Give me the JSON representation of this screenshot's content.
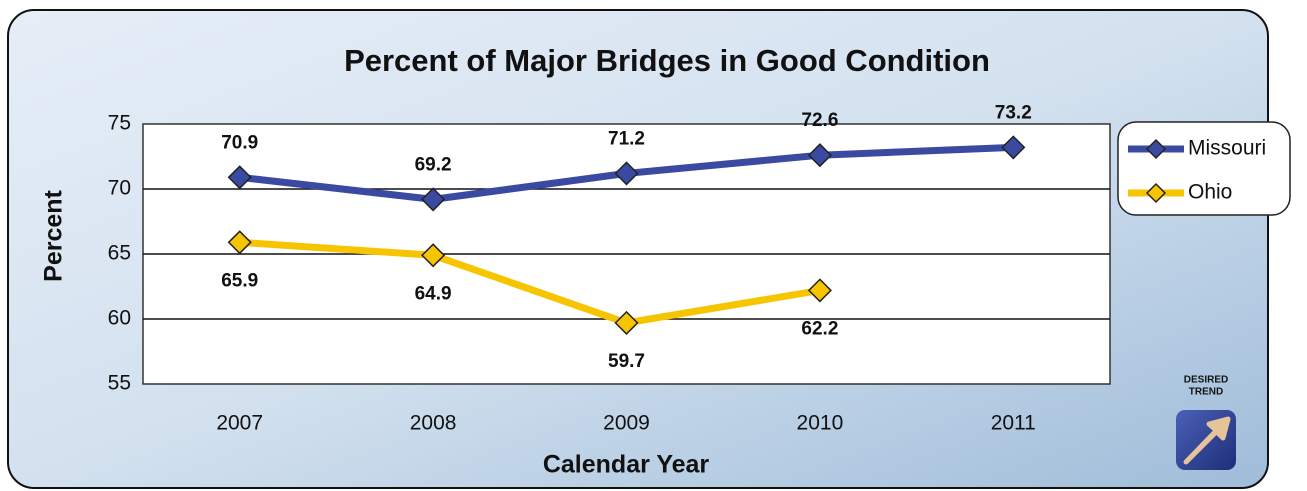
{
  "chart_data": {
    "type": "line",
    "title": "Percent of Major Bridges in Good Condition",
    "x_label": "Calendar Year",
    "y_label": "Percent",
    "categories": [
      "2007",
      "2008",
      "2009",
      "2010",
      "2011"
    ],
    "series": [
      {
        "name": "Missouri",
        "color": "#3a4aa0",
        "values": [
          70.9,
          69.2,
          71.2,
          72.6,
          73.2
        ]
      },
      {
        "name": "Ohio",
        "color": "#f6c500",
        "values": [
          65.9,
          64.9,
          59.7,
          62.2,
          null
        ]
      }
    ],
    "ylim": [
      55,
      75
    ],
    "yticks": [
      55,
      60,
      65,
      70,
      75
    ],
    "grid": true,
    "legend": "right",
    "annotation": [
      "DESIRED",
      "TREND"
    ]
  }
}
